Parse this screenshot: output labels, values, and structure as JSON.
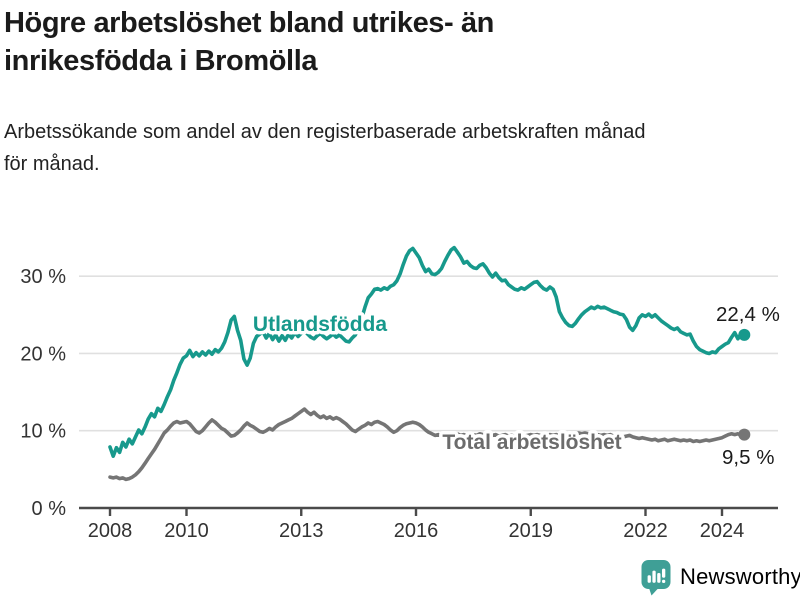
{
  "header": {
    "title_line1": "Högre arbetslöshet bland utrikes- än",
    "title_line2": "inrikesfödda i Bromölla",
    "subtitle_line1": "Arbetssökande som andel av den registerbaserade arbetskraften månad",
    "subtitle_line2": "för månad."
  },
  "footer": {
    "brand_name": "Newsworthy"
  },
  "colors": {
    "teal_line": "#17998c",
    "gray_line": "#757575",
    "gray_label": "#6b6b6b",
    "axis_line": "#4a4a4a",
    "grid_line": "#e0e0e0",
    "tick_text": "#333333",
    "end_label_text": "#1a1a1a",
    "title_text": "#1b1b1b",
    "brand_teal": "#3f9f96",
    "background": "#ffffff"
  },
  "chart_data": {
    "type": "line",
    "title": "Högre arbetslöshet bland utrikes- än inrikesfödda i Bromölla",
    "subtitle": "Arbetssökande som andel av den registerbaserade arbetskraften månad för månad.",
    "x_start_year": 2008,
    "x_step_years": 0.0833333,
    "x_ticks": [
      {
        "year": 2008,
        "label": "2008"
      },
      {
        "year": 2010,
        "label": "2010"
      },
      {
        "year": 2013,
        "label": "2013"
      },
      {
        "year": 2016,
        "label": "2016"
      },
      {
        "year": 2019,
        "label": "2019"
      },
      {
        "year": 2022,
        "label": "2022"
      },
      {
        "year": 2024,
        "label": "2024"
      }
    ],
    "y_ticks": [
      {
        "value": 0,
        "label": "0 %"
      },
      {
        "value": 10,
        "label": "10 %"
      },
      {
        "value": 20,
        "label": "20 %"
      },
      {
        "value": 30,
        "label": "30 %"
      }
    ],
    "ylim": [
      0,
      35
    ],
    "grid": true,
    "legend_position": "inline-labels",
    "series": [
      {
        "name": "Utlandsfödda",
        "color": "#17998c",
        "label_color": "#17998c",
        "end_label": "22,4 %",
        "end_value": 22.4,
        "values": [
          7.9,
          6.7,
          7.8,
          7.2,
          8.5,
          7.9,
          8.9,
          8.3,
          9.2,
          10.1,
          9.6,
          10.5,
          11.5,
          12.2,
          11.8,
          12.9,
          12.5,
          13.4,
          14.4,
          15.3,
          16.5,
          17.5,
          18.6,
          19.4,
          19.7,
          20.4,
          19.6,
          20.1,
          19.7,
          20.2,
          19.8,
          20.3,
          19.9,
          20.5,
          20.2,
          20.7,
          21.5,
          22.7,
          24.3,
          24.8,
          23.0,
          21.7,
          19.3,
          18.5,
          19.4,
          21.3,
          22.2,
          22.5,
          22.8,
          22.0,
          22.6,
          21.8,
          22.4,
          21.6,
          22.3,
          21.7,
          22.5,
          22.0,
          22.7,
          22.2,
          22.6,
          22.9,
          22.5,
          22.1,
          21.9,
          22.3,
          22.6,
          22.2,
          21.9,
          22.2,
          22.5,
          22.1,
          22.4,
          22.0,
          21.6,
          21.5,
          22.0,
          22.4,
          23.3,
          24.6,
          26.0,
          27.2,
          27.7,
          28.3,
          28.4,
          28.2,
          28.5,
          28.3,
          28.7,
          28.9,
          29.4,
          30.3,
          31.5,
          32.6,
          33.3,
          33.6,
          33.0,
          32.4,
          31.4,
          30.6,
          30.9,
          30.3,
          30.2,
          30.5,
          31.0,
          31.9,
          32.7,
          33.4,
          33.7,
          33.1,
          32.5,
          31.7,
          31.9,
          31.4,
          31.1,
          31.0,
          31.4,
          31.6,
          31.1,
          30.4,
          29.9,
          30.4,
          29.8,
          29.4,
          29.5,
          28.9,
          28.6,
          28.3,
          28.2,
          28.5,
          28.3,
          28.6,
          28.9,
          29.2,
          29.3,
          28.8,
          28.4,
          28.2,
          28.6,
          28.3,
          27.3,
          25.4,
          24.6,
          24.0,
          23.6,
          23.5,
          23.9,
          24.5,
          25.0,
          25.4,
          25.7,
          26.0,
          25.8,
          26.1,
          25.9,
          26.0,
          25.8,
          25.6,
          25.4,
          25.3,
          25.1,
          25.0,
          24.4,
          23.4,
          23.0,
          23.6,
          24.6,
          25.0,
          24.8,
          25.1,
          24.7,
          25.0,
          24.6,
          24.2,
          23.9,
          23.6,
          23.3,
          23.1,
          23.3,
          22.8,
          22.6,
          22.4,
          22.5,
          21.6,
          20.9,
          20.5,
          20.3,
          20.1,
          20.0,
          20.2,
          20.1,
          20.6,
          20.9,
          21.2,
          21.4,
          22.1,
          22.7,
          21.9,
          22.6,
          22.4
        ]
      },
      {
        "name": "Total arbetslöshet",
        "color": "#757575",
        "label_color": "#6b6b6b",
        "end_label": "9,5 %",
        "end_value": 9.5,
        "values": [
          4.0,
          3.9,
          4.0,
          3.8,
          3.9,
          3.7,
          3.8,
          4.0,
          4.3,
          4.7,
          5.2,
          5.8,
          6.4,
          7.0,
          7.6,
          8.3,
          9.0,
          9.7,
          10.1,
          10.6,
          11.0,
          11.2,
          11.0,
          11.1,
          11.2,
          10.9,
          10.4,
          9.9,
          9.7,
          10.0,
          10.5,
          11.0,
          11.4,
          11.1,
          10.7,
          10.3,
          10.1,
          9.7,
          9.3,
          9.4,
          9.7,
          10.1,
          10.6,
          11.0,
          10.7,
          10.5,
          10.2,
          9.9,
          9.8,
          10.0,
          10.3,
          10.1,
          10.5,
          10.8,
          11.0,
          11.2,
          11.4,
          11.6,
          11.9,
          12.2,
          12.5,
          12.8,
          12.4,
          12.1,
          12.4,
          12.0,
          11.7,
          11.9,
          11.6,
          11.8,
          11.5,
          11.7,
          11.5,
          11.2,
          10.9,
          10.5,
          10.1,
          9.9,
          10.2,
          10.5,
          10.7,
          11.0,
          10.8,
          11.1,
          11.2,
          11.0,
          10.8,
          10.5,
          10.1,
          9.8,
          10.0,
          10.4,
          10.7,
          10.9,
          11.0,
          11.1,
          11.0,
          10.8,
          10.5,
          10.1,
          9.8,
          9.6,
          9.4,
          9.5,
          9.3,
          9.5,
          9.4,
          9.6,
          9.5,
          9.6,
          9.4,
          9.5,
          9.3,
          9.4,
          9.5,
          9.4,
          9.6,
          9.5,
          9.4,
          9.5,
          9.4,
          9.5,
          9.3,
          9.4,
          9.5,
          9.3,
          9.4,
          9.3,
          9.5,
          9.4,
          9.3,
          9.4,
          9.5,
          9.4,
          9.5,
          9.4,
          9.3,
          9.4,
          9.5,
          9.4,
          9.5,
          9.4,
          9.5,
          9.4,
          9.5,
          9.4,
          9.6,
          9.7,
          9.6,
          9.7,
          9.6,
          9.5,
          9.6,
          9.5,
          9.4,
          9.5,
          9.4,
          9.5,
          9.3,
          9.4,
          9.3,
          9.2,
          9.3,
          9.4,
          9.2,
          9.1,
          9.0,
          9.1,
          9.0,
          8.9,
          8.8,
          8.9,
          8.7,
          8.8,
          8.9,
          8.7,
          8.8,
          8.9,
          8.8,
          8.7,
          8.8,
          8.7,
          8.8,
          8.6,
          8.7,
          8.6,
          8.7,
          8.8,
          8.7,
          8.8,
          8.9,
          9.0,
          9.1,
          9.3,
          9.5,
          9.6,
          9.5,
          9.6,
          9.4,
          9.5
        ]
      }
    ]
  }
}
